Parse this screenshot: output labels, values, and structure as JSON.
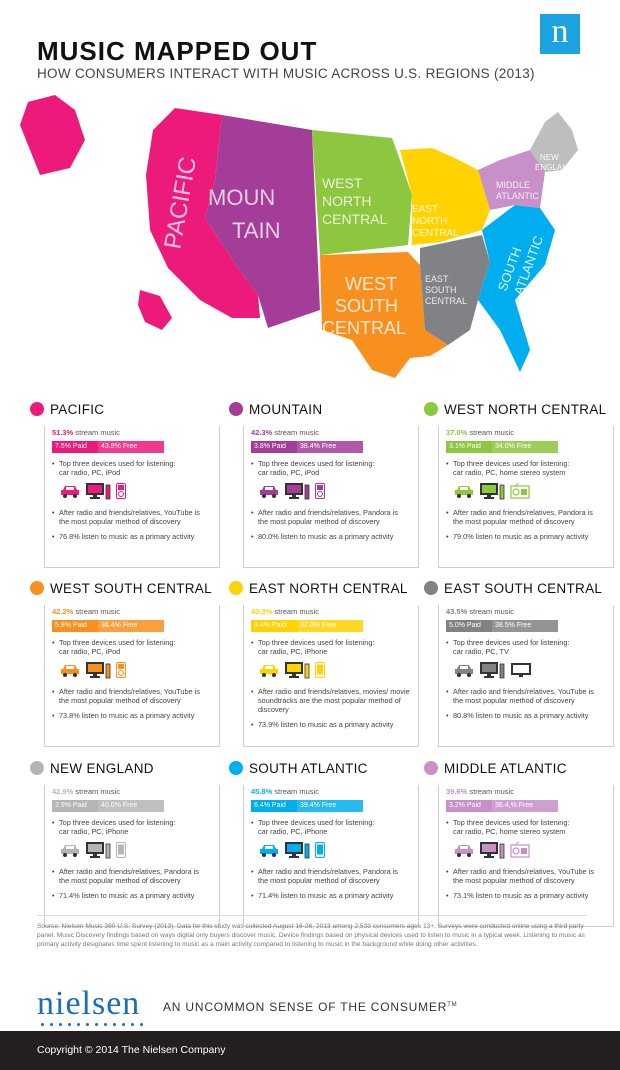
{
  "header": {
    "title": "MUSIC MAPPED OUT",
    "subtitle": "HOW CONSUMERS INTERACT WITH MUSIC ACROSS U.S. REGIONS (2013)",
    "logo_letter": "n"
  },
  "map": {
    "labels": {
      "pacific": "PACIFIC",
      "mountain_1": "MOUN",
      "mountain_2": "TAIN",
      "wnc_1": "WEST",
      "wnc_2": "NORTH",
      "wnc_3": "CENTRAL",
      "enc_1": "EAST",
      "enc_2": "NORTH",
      "enc_3": "CENTRAL",
      "wsc_1": "WEST",
      "wsc_2": "SOUTH",
      "wsc_3": "CENTRAL",
      "esc_1": "EAST",
      "esc_2": "SOUTH",
      "esc_3": "CENTRAL",
      "sa_1": "SOUTH",
      "sa_2": "ATLANTIC",
      "ma_1": "MIDDLE",
      "ma_2": "ATLANTIC",
      "ne_1": "NEW",
      "ne_2": "ENGLAND"
    }
  },
  "stream_label": "stream music",
  "paid_label": "Paid",
  "free_label": "Free",
  "devices_heading": "Top three devices used for listening:",
  "regions": [
    {
      "name": "PACIFIC",
      "color": "#ec1a7b",
      "stream": "51.3%",
      "paid": "7.5%",
      "free": "43.8%",
      "devices": "car radio, PC, iPod",
      "discovery": "After radio and friends/relatives, YouTube is the most popular method of discovery",
      "primary": "76.8% listen to music as a primary activity",
      "icons": [
        "car-icon",
        "pc-icon",
        "ipod-icon"
      ]
    },
    {
      "name": "MOUNTAIN",
      "color": "#a43d98",
      "stream": "42.3%",
      "paid": "3.8%",
      "free": "38.4%",
      "devices": "car radio, PC, iPod",
      "discovery": "After radio and friends/relatives, Pandora is the most popular method of discovery",
      "primary": "80.0% listen to music as a primary activity",
      "icons": [
        "car-icon",
        "pc-icon",
        "ipod-icon"
      ]
    },
    {
      "name": "WEST NORTH CENTRAL",
      "color": "#8dc63f",
      "stream": "37.0%",
      "paid": "3.1%",
      "free": "34.0%",
      "devices": "car radio, PC, home stereo system",
      "discovery": "After radio and friends/relatives, Pandora is the most popular method of discovery",
      "primary": "79.0% listen to music as a primary activity",
      "icons": [
        "car-icon",
        "pc-icon",
        "stereo-icon"
      ]
    },
    {
      "name": "WEST SOUTH CENTRAL",
      "color": "#f7901e",
      "stream": "42.2%",
      "paid": "5.8%",
      "free": "36.4%",
      "devices": "car radio, PC, iPod",
      "discovery": "After radio and friends/relatives, YouTube is the most popular method of discovery",
      "primary": "73.8% listen to music as a primary activity",
      "icons": [
        "car-icon",
        "pc-icon",
        "ipod-icon"
      ]
    },
    {
      "name": "EAST NORTH CENTRAL",
      "color": "#ffd200",
      "stream": "40.3%",
      "paid": "3.4%",
      "free": "37.0%",
      "devices": "car radio, PC, iPhone",
      "discovery": "After radio and friends/relatives, movies/ movie soundtracks are the most popular method of discovery",
      "primary": "73.9% listen to music as a primary activity",
      "icons": [
        "car-icon",
        "pc-icon",
        "iphone-icon"
      ]
    },
    {
      "name": "EAST SOUTH CENTRAL",
      "color": "#808285",
      "stream": "43.5%",
      "paid": "5.0%",
      "free": "38.5%",
      "devices": "car radio, PC, TV",
      "discovery": "After radio and friends/relatives, YouTube is the most popular method of discovery",
      "primary": "80.8% listen to music as a primary activity",
      "icons": [
        "car-icon",
        "pc-icon",
        "tv-icon"
      ]
    },
    {
      "name": "NEW ENGLAND",
      "color": "#b5b5b5",
      "stream": "42.9%",
      "paid": "2.9%",
      "free": "40.0%",
      "devices": "car radio, PC,  iPhone",
      "discovery": "After radio and friends/relatives, Pandora is the most popular method of discovery",
      "primary": "71.4% listen to music as a primary activity",
      "icons": [
        "car-icon",
        "pc-icon",
        "iphone-icon"
      ]
    },
    {
      "name": "SOUTH ATLANTIC",
      "color": "#00aeef",
      "stream": "45.8%",
      "paid": "6.4%",
      "free": "39.4%",
      "devices": "car radio, PC,  iPhone",
      "discovery": "After radio and friends/relatives, Pandora is the most popular method of discovery",
      "primary": "71.4% listen to music as a primary activity",
      "icons": [
        "car-icon",
        "pc-icon",
        "iphone-icon"
      ]
    },
    {
      "name": "MIDDLE ATLANTIC",
      "color": "#c88fc9",
      "stream": "39.6%",
      "paid": "3.2%",
      "free": "36.4,%",
      "devices": "car radio, PC, home stereo system",
      "discovery": "After radio and friends/relatives, YouTube is the most popular method of discovery",
      "primary": "73.1% listen to music as a primary activity",
      "icons": [
        "car-icon",
        "pc-icon",
        "stereo-icon"
      ]
    }
  ],
  "source": "Source: Nielsen Music 360 U.S. Survey (2013). Data for this study was collected August 16-26, 2013 among 2,533 consumers ages 13+.  Surveys were conducted online using a third party panel. Music Discovery findings based on ways digital only buyers discover music. Device findings based on physical devices used to listen to music in a typical week. Listening to music as primary activity designates time spent listening to music as a main activity compared to listening to music in the background while doing other activities.",
  "brand": {
    "wordmark": "nielsen",
    "tagline": "AN UNCOMMON SENSE OF THE CONSUMER",
    "tm": "TM"
  },
  "footer": {
    "copyright": "Copyright © 2014 The Nielsen Company"
  }
}
